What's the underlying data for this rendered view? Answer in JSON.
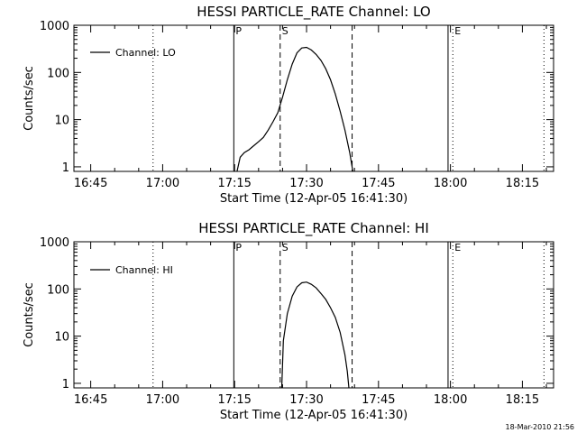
{
  "chart_data": [
    {
      "type": "line",
      "title": "HESSI PARTICLE_RATE Channel: LO",
      "xlabel": "Start Time (12-Apr-05 16:41:30)",
      "ylabel": "Counts/sec",
      "y_scale": "log",
      "xlim": [
        "16:41:30",
        "18:21:30"
      ],
      "ylim": [
        0.8,
        1000
      ],
      "x_ticks": [
        "16:45",
        "17:00",
        "17:15",
        "17:30",
        "17:45",
        "18:00",
        "18:15"
      ],
      "y_ticks": [
        "1",
        "10",
        "100",
        "1000"
      ],
      "legend": {
        "position": "top-left",
        "label": "Channel: LO"
      },
      "markers": [
        {
          "time": "17:14:50",
          "style": "solid",
          "label": "P"
        },
        {
          "time": "17:24:30",
          "style": "dashed",
          "label": "S"
        },
        {
          "time": "17:39:30",
          "style": "dashed",
          "label": ""
        },
        {
          "time": "17:59:30",
          "style": "solid",
          "label": ""
        },
        {
          "time": "18:00:30",
          "style": "dotted",
          "label": "E"
        },
        {
          "time": "16:58:00",
          "style": "dotted",
          "label": ""
        },
        {
          "time": "18:19:30",
          "style": "dotted",
          "label": ""
        }
      ],
      "series": [
        {
          "name": "Channel: LO",
          "points": [
            [
              "17:15:30",
              0.8
            ],
            [
              "17:16:10",
              1.6
            ],
            [
              "17:17:00",
              2.0
            ],
            [
              "17:18:00",
              2.3
            ],
            [
              "17:19:00",
              2.8
            ],
            [
              "17:20:00",
              3.4
            ],
            [
              "17:21:00",
              4.2
            ],
            [
              "17:22:00",
              6.0
            ],
            [
              "17:23:00",
              9.0
            ],
            [
              "17:24:00",
              14.0
            ],
            [
              "17:25:00",
              30.0
            ],
            [
              "17:26:00",
              70.0
            ],
            [
              "17:27:00",
              150.0
            ],
            [
              "17:28:00",
              260.0
            ],
            [
              "17:29:00",
              330.0
            ],
            [
              "17:30:00",
              340.0
            ],
            [
              "17:31:00",
              300.0
            ],
            [
              "17:32:00",
              240.0
            ],
            [
              "17:33:00",
              180.0
            ],
            [
              "17:34:00",
              120.0
            ],
            [
              "17:35:00",
              70.0
            ],
            [
              "17:36:00",
              35.0
            ],
            [
              "17:37:00",
              15.0
            ],
            [
              "17:38:00",
              6.0
            ],
            [
              "17:39:00",
              2.0
            ],
            [
              "17:39:40",
              0.8
            ]
          ]
        }
      ]
    },
    {
      "type": "line",
      "title": "HESSI PARTICLE_RATE Channel: HI",
      "xlabel": "Start Time (12-Apr-05 16:41:30)",
      "ylabel": "Counts/sec",
      "y_scale": "log",
      "xlim": [
        "16:41:30",
        "18:21:30"
      ],
      "ylim": [
        0.8,
        1000
      ],
      "x_ticks": [
        "16:45",
        "17:00",
        "17:15",
        "17:30",
        "17:45",
        "18:00",
        "18:15"
      ],
      "y_ticks": [
        "1",
        "10",
        "100",
        "1000"
      ],
      "legend": {
        "position": "top-left",
        "label": "Channel: HI"
      },
      "markers": [
        {
          "time": "17:14:50",
          "style": "solid",
          "label": "P"
        },
        {
          "time": "17:24:30",
          "style": "dashed",
          "label": "S"
        },
        {
          "time": "17:39:30",
          "style": "dashed",
          "label": ""
        },
        {
          "time": "17:59:30",
          "style": "solid",
          "label": ""
        },
        {
          "time": "18:00:30",
          "style": "dotted",
          "label": "E"
        },
        {
          "time": "16:58:00",
          "style": "dotted",
          "label": ""
        },
        {
          "time": "18:19:30",
          "style": "dotted",
          "label": ""
        }
      ],
      "series": [
        {
          "name": "Channel: HI",
          "points": [
            [
              "17:24:50",
              0.8
            ],
            [
              "17:25:10",
              8.0
            ],
            [
              "17:26:00",
              30.0
            ],
            [
              "17:27:00",
              70.0
            ],
            [
              "17:28:00",
              110.0
            ],
            [
              "17:29:00",
              135.0
            ],
            [
              "17:30:00",
              140.0
            ],
            [
              "17:31:00",
              125.0
            ],
            [
              "17:32:00",
              105.0
            ],
            [
              "17:33:00",
              80.0
            ],
            [
              "17:34:00",
              60.0
            ],
            [
              "17:35:00",
              40.0
            ],
            [
              "17:36:00",
              25.0
            ],
            [
              "17:37:00",
              12.0
            ],
            [
              "17:38:00",
              4.0
            ],
            [
              "17:38:30",
              1.8
            ],
            [
              "17:38:50",
              0.8
            ]
          ]
        }
      ]
    }
  ],
  "footer": {
    "timestamp": "18-Mar-2010 21:56"
  }
}
